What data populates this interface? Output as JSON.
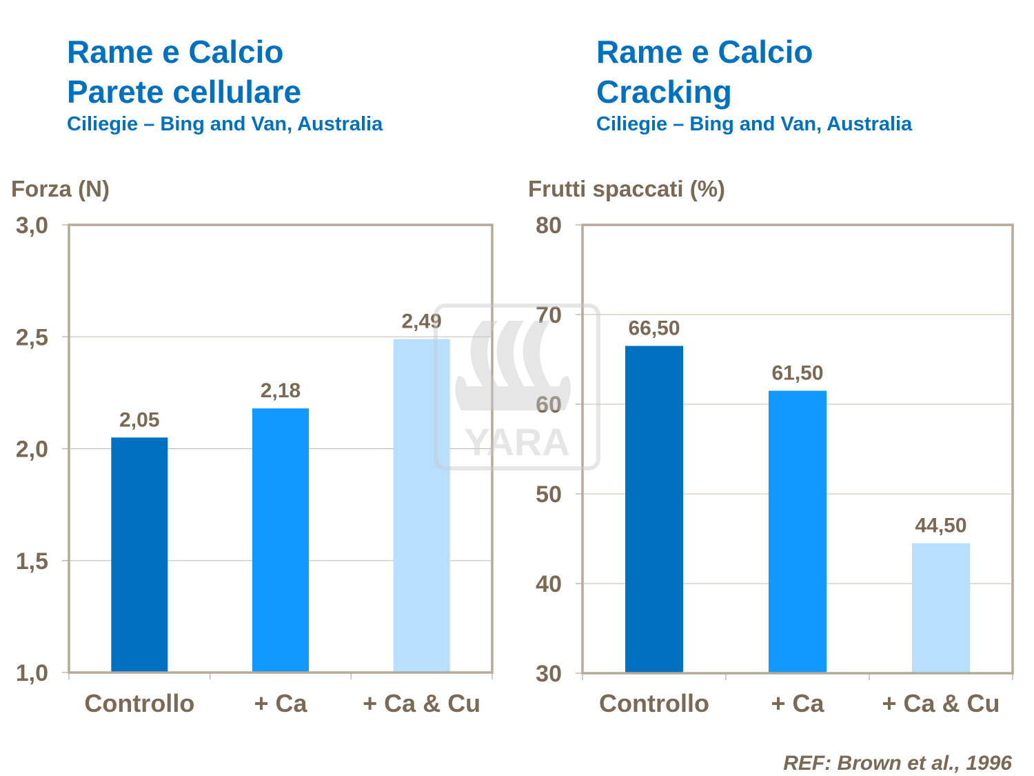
{
  "colors": {
    "title": "#0070C0",
    "text": "#7A6A55",
    "frame": "#B5A99B",
    "grid": "#C4B8AA"
  },
  "watermark": "YARA",
  "reference": "REF: Brown et al., 1996",
  "chart_data": [
    {
      "type": "bar",
      "title_lines": [
        "Rame e Calcio",
        "Parete cellulare"
      ],
      "subtitle": "Ciliegie – Bing and Van, Australia",
      "ylabel": "Forza (N)",
      "xlabel": "",
      "ylim": [
        1.0,
        3.0
      ],
      "yticks": [
        1.0,
        1.5,
        2.0,
        2.5,
        3.0
      ],
      "ytick_labels": [
        "1,0",
        "1,5",
        "2,0",
        "2,5",
        "3,0"
      ],
      "grid": true,
      "categories": [
        "Controllo",
        "+ Ca",
        "+ Ca & Cu"
      ],
      "values": [
        2.05,
        2.18,
        2.49
      ],
      "data_labels": [
        "2,05",
        "2,18",
        "2,49"
      ],
      "bar_colors": [
        "#0070C0",
        "#1199FF",
        "#B8DFFF"
      ]
    },
    {
      "type": "bar",
      "title_lines": [
        "Rame e Calcio",
        "Cracking"
      ],
      "subtitle": "Ciliegie – Bing and Van, Australia",
      "ylabel": "Frutti spaccati (%)",
      "xlabel": "",
      "ylim": [
        30,
        80
      ],
      "yticks": [
        30,
        40,
        50,
        60,
        70,
        80
      ],
      "ytick_labels": [
        "30",
        "40",
        "50",
        "60",
        "70",
        "80"
      ],
      "grid": true,
      "categories": [
        "Controllo",
        "+ Ca",
        "+ Ca & Cu"
      ],
      "values": [
        66.5,
        61.5,
        44.5
      ],
      "data_labels": [
        "66,50",
        "61,50",
        "44,50"
      ],
      "bar_colors": [
        "#0070C0",
        "#1199FF",
        "#B8DFFF"
      ]
    }
  ]
}
